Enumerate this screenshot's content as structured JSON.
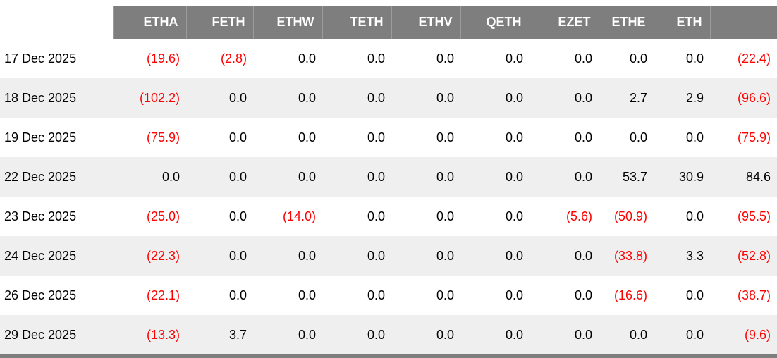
{
  "table": {
    "headers": [
      "ETHA",
      "FETH",
      "ETHW",
      "TETH",
      "ETHV",
      "QETH",
      "EZET",
      "ETHE",
      "ETH"
    ],
    "rows": [
      {
        "date": "17 Dec 2025",
        "values": [
          "(19.6)",
          "(2.8)",
          "0.0",
          "0.0",
          "0.0",
          "0.0",
          "0.0",
          "0.0",
          "0.0"
        ],
        "total": "(22.4)"
      },
      {
        "date": "18 Dec 2025",
        "values": [
          "(102.2)",
          "0.0",
          "0.0",
          "0.0",
          "0.0",
          "0.0",
          "0.0",
          "2.7",
          "2.9"
        ],
        "total": "(96.6)"
      },
      {
        "date": "19 Dec 2025",
        "values": [
          "(75.9)",
          "0.0",
          "0.0",
          "0.0",
          "0.0",
          "0.0",
          "0.0",
          "0.0",
          "0.0"
        ],
        "total": "(75.9)"
      },
      {
        "date": "22 Dec 2025",
        "values": [
          "0.0",
          "0.0",
          "0.0",
          "0.0",
          "0.0",
          "0.0",
          "0.0",
          "53.7",
          "30.9"
        ],
        "total": "84.6"
      },
      {
        "date": "23 Dec 2025",
        "values": [
          "(25.0)",
          "0.0",
          "(14.0)",
          "0.0",
          "0.0",
          "0.0",
          "(5.6)",
          "(50.9)",
          "0.0"
        ],
        "total": "(95.5)"
      },
      {
        "date": "24 Dec 2025",
        "values": [
          "(22.3)",
          "0.0",
          "0.0",
          "0.0",
          "0.0",
          "0.0",
          "0.0",
          "(33.8)",
          "3.3"
        ],
        "total": "(52.8)"
      },
      {
        "date": "26 Dec 2025",
        "values": [
          "(22.1)",
          "0.0",
          "0.0",
          "0.0",
          "0.0",
          "0.0",
          "0.0",
          "(16.6)",
          "0.0"
        ],
        "total": "(38.7)"
      },
      {
        "date": "29 Dec 2025",
        "values": [
          "(13.3)",
          "3.7",
          "0.0",
          "0.0",
          "0.0",
          "0.0",
          "0.0",
          "0.0",
          "0.0"
        ],
        "total": "(9.6)"
      }
    ]
  },
  "chart_data": {
    "type": "table",
    "columns": [
      "",
      "ETHA",
      "FETH",
      "ETHW",
      "TETH",
      "ETHV",
      "QETH",
      "EZET",
      "ETHE",
      "ETH",
      ""
    ],
    "rows": [
      [
        "17 Dec 2025",
        -19.6,
        -2.8,
        0.0,
        0.0,
        0.0,
        0.0,
        0.0,
        0.0,
        0.0,
        -22.4
      ],
      [
        "18 Dec 2025",
        -102.2,
        0.0,
        0.0,
        0.0,
        0.0,
        0.0,
        0.0,
        2.7,
        2.9,
        -96.6
      ],
      [
        "19 Dec 2025",
        -75.9,
        0.0,
        0.0,
        0.0,
        0.0,
        0.0,
        0.0,
        0.0,
        0.0,
        -75.9
      ],
      [
        "22 Dec 2025",
        0.0,
        0.0,
        0.0,
        0.0,
        0.0,
        0.0,
        0.0,
        53.7,
        30.9,
        84.6
      ],
      [
        "23 Dec 2025",
        -25.0,
        0.0,
        -14.0,
        0.0,
        0.0,
        0.0,
        -5.6,
        -50.9,
        0.0,
        -95.5
      ],
      [
        "24 Dec 2025",
        -22.3,
        0.0,
        0.0,
        0.0,
        0.0,
        0.0,
        0.0,
        -33.8,
        3.3,
        -52.8
      ],
      [
        "26 Dec 2025",
        -22.1,
        0.0,
        0.0,
        0.0,
        0.0,
        0.0,
        0.0,
        -16.6,
        0.0,
        -38.7
      ],
      [
        "29 Dec 2025",
        -13.3,
        3.7,
        0.0,
        0.0,
        0.0,
        0.0,
        0.0,
        0.0,
        0.0,
        -9.6
      ]
    ],
    "notes": "Negative values rendered in red with parentheses; alternating row shading; dark header band; partial dark band cut off at bottom of screenshot"
  },
  "colors": {
    "header_bg": "#7e7e7e",
    "header_text": "#ffffff",
    "row_stripe": "#efefef",
    "negative": "#ff0000",
    "text": "#000000"
  }
}
